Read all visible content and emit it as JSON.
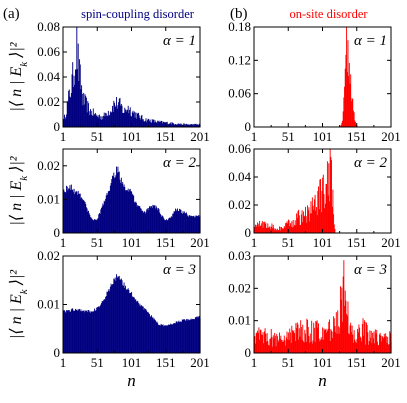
{
  "chart_data": [
    {
      "id": "a1",
      "type": "bar",
      "panel_label": "(a)",
      "column_title": "spin-coupling disorder",
      "annotation": "α = 1",
      "color": "#000080",
      "ylabel": "|⟨ n | E_k ⟩|²",
      "xlabel": "",
      "xlim": [
        1,
        201
      ],
      "ylim": [
        0,
        0.08
      ],
      "xticks": [
        1,
        51,
        101,
        151,
        201
      ],
      "xticklabels": [
        "1",
        "51",
        "101",
        "151",
        "201"
      ],
      "yticks": [
        0,
        0.02,
        0.04,
        0.06,
        0.08
      ],
      "yticklabels": [
        "0",
        "0.02",
        "0.04",
        "0.06",
        "0.08"
      ],
      "profile": [
        [
          1,
          0.003
        ],
        [
          5,
          0.012
        ],
        [
          10,
          0.025
        ],
        [
          14,
          0.035
        ],
        [
          18,
          0.05
        ],
        [
          21,
          0.065
        ],
        [
          24,
          0.045
        ],
        [
          27,
          0.035
        ],
        [
          30,
          0.022
        ],
        [
          35,
          0.018
        ],
        [
          40,
          0.013
        ],
        [
          50,
          0.009
        ],
        [
          60,
          0.008
        ],
        [
          65,
          0.012
        ],
        [
          70,
          0.013
        ],
        [
          75,
          0.018
        ],
        [
          80,
          0.019
        ],
        [
          85,
          0.017
        ],
        [
          90,
          0.012
        ],
        [
          95,
          0.016
        ],
        [
          100,
          0.013
        ],
        [
          110,
          0.009
        ],
        [
          120,
          0.006
        ],
        [
          140,
          0.004
        ],
        [
          160,
          0.003
        ],
        [
          180,
          0.002
        ],
        [
          201,
          0.002
        ]
      ],
      "noise": 0.35
    },
    {
      "id": "b1",
      "type": "bar",
      "panel_label": "(b)",
      "column_title": "on-site disorder",
      "annotation": "α = 1",
      "color": "#ff0000",
      "ylabel": "",
      "xlabel": "",
      "xlim": [
        1,
        201
      ],
      "ylim": [
        0,
        0.18
      ],
      "xticks": [
        1,
        51,
        101,
        151,
        201
      ],
      "xticklabels": [
        "1",
        "51",
        "101",
        "151",
        "201"
      ],
      "yticks": [
        0,
        0.06,
        0.12,
        0.18
      ],
      "yticklabels": [
        "0",
        "0.06",
        "0.12",
        "0.18"
      ],
      "profile": [
        [
          1,
          0
        ],
        [
          126,
          0
        ],
        [
          128,
          0.004
        ],
        [
          130,
          0.015
        ],
        [
          132,
          0.04
        ],
        [
          134,
          0.085
        ],
        [
          136,
          0.16
        ],
        [
          138,
          0.14
        ],
        [
          140,
          0.11
        ],
        [
          142,
          0.085
        ],
        [
          144,
          0.05
        ],
        [
          146,
          0.03
        ],
        [
          148,
          0.015
        ],
        [
          150,
          0.005
        ],
        [
          152,
          0.001
        ],
        [
          154,
          0
        ],
        [
          201,
          0
        ]
      ],
      "noise": 0.35
    },
    {
      "id": "a2",
      "type": "bar",
      "panel_label": "",
      "column_title": "",
      "annotation": "α = 2",
      "color": "#000080",
      "ylabel": "|⟨ n | E_k ⟩|²",
      "xlabel": "",
      "xlim": [
        1,
        201
      ],
      "ylim": [
        0,
        0.025
      ],
      "xticks": [
        1,
        51,
        101,
        151,
        201
      ],
      "xticklabels": [
        "1",
        "51",
        "101",
        "151",
        "201"
      ],
      "yticks": [
        0,
        0.01,
        0.02
      ],
      "yticklabels": [
        "0",
        "0.01",
        "0.02"
      ],
      "profile": [
        [
          1,
          0.012
        ],
        [
          5,
          0.013
        ],
        [
          10,
          0.014
        ],
        [
          15,
          0.013
        ],
        [
          20,
          0.012
        ],
        [
          25,
          0.012
        ],
        [
          30,
          0.01
        ],
        [
          35,
          0.008
        ],
        [
          40,
          0.005
        ],
        [
          45,
          0.004
        ],
        [
          50,
          0.004
        ],
        [
          55,
          0.006
        ],
        [
          60,
          0.009
        ],
        [
          65,
          0.011
        ],
        [
          70,
          0.014
        ],
        [
          75,
          0.017
        ],
        [
          80,
          0.019
        ],
        [
          85,
          0.016
        ],
        [
          90,
          0.014
        ],
        [
          95,
          0.013
        ],
        [
          100,
          0.012
        ],
        [
          105,
          0.01
        ],
        [
          110,
          0.008
        ],
        [
          115,
          0.007
        ],
        [
          120,
          0.006
        ],
        [
          125,
          0.007
        ],
        [
          130,
          0.008
        ],
        [
          135,
          0.008
        ],
        [
          140,
          0.007
        ],
        [
          145,
          0.005
        ],
        [
          150,
          0.004
        ],
        [
          155,
          0.004
        ],
        [
          160,
          0.005
        ],
        [
          165,
          0.007
        ],
        [
          170,
          0.007
        ],
        [
          175,
          0.006
        ],
        [
          180,
          0.006
        ],
        [
          185,
          0.005
        ],
        [
          190,
          0.005
        ],
        [
          195,
          0.005
        ],
        [
          201,
          0.005
        ]
      ],
      "noise": 0.08
    },
    {
      "id": "b2",
      "type": "bar",
      "panel_label": "",
      "column_title": "",
      "annotation": "α = 2",
      "color": "#ff0000",
      "ylabel": "",
      "xlabel": "",
      "xlim": [
        1,
        201
      ],
      "ylim": [
        0,
        0.06
      ],
      "xticks": [
        1,
        51,
        101,
        151,
        201
      ],
      "xticklabels": [
        "1",
        "51",
        "101",
        "151",
        "201"
      ],
      "yticks": [
        0,
        0.02,
        0.04,
        0.06
      ],
      "yticklabels": [
        "0",
        "0.02",
        "0.04",
        "0.06"
      ],
      "profile": [
        [
          1,
          0.005
        ],
        [
          10,
          0.006
        ],
        [
          20,
          0.007
        ],
        [
          30,
          0.004
        ],
        [
          40,
          0.003
        ],
        [
          50,
          0.006
        ],
        [
          60,
          0.009
        ],
        [
          70,
          0.012
        ],
        [
          80,
          0.014
        ],
        [
          90,
          0.02
        ],
        [
          100,
          0.028
        ],
        [
          105,
          0.03
        ],
        [
          110,
          0.038
        ],
        [
          112,
          0.044
        ],
        [
          114,
          0.036
        ],
        [
          116,
          0.02
        ],
        [
          118,
          0.004
        ],
        [
          120,
          0
        ],
        [
          201,
          0
        ]
      ],
      "noise": 0.55
    },
    {
      "id": "a3",
      "type": "bar",
      "panel_label": "",
      "column_title": "",
      "annotation": "α = 3",
      "color": "#000080",
      "ylabel": "|⟨ n | E_k ⟩|²",
      "xlabel": "n",
      "xlim": [
        1,
        201
      ],
      "ylim": [
        0,
        0.02
      ],
      "xticks": [
        1,
        51,
        101,
        151,
        201
      ],
      "xticklabels": [
        "1",
        "51",
        "101",
        "151",
        "201"
      ],
      "yticks": [
        0,
        0.01,
        0.02
      ],
      "yticklabels": [
        "0",
        "0.01",
        "0.02"
      ],
      "profile": [
        [
          1,
          0.0085
        ],
        [
          10,
          0.0088
        ],
        [
          20,
          0.009
        ],
        [
          30,
          0.0088
        ],
        [
          40,
          0.0085
        ],
        [
          50,
          0.009
        ],
        [
          60,
          0.011
        ],
        [
          70,
          0.0135
        ],
        [
          80,
          0.016
        ],
        [
          85,
          0.015
        ],
        [
          90,
          0.014
        ],
        [
          100,
          0.0125
        ],
        [
          110,
          0.0105
        ],
        [
          120,
          0.009
        ],
        [
          130,
          0.0075
        ],
        [
          140,
          0.006
        ],
        [
          150,
          0.0055
        ],
        [
          160,
          0.006
        ],
        [
          170,
          0.0065
        ],
        [
          180,
          0.0068
        ],
        [
          190,
          0.007
        ],
        [
          201,
          0.0075
        ]
      ],
      "noise": 0.04
    },
    {
      "id": "b3",
      "type": "bar",
      "panel_label": "",
      "column_title": "",
      "annotation": "α = 3",
      "color": "#ff0000",
      "ylabel": "",
      "xlabel": "n",
      "xlim": [
        1,
        201
      ],
      "ylim": [
        0,
        0.03
      ],
      "xticks": [
        1,
        51,
        101,
        151,
        201
      ],
      "xticklabels": [
        "1",
        "51",
        "101",
        "151",
        "201"
      ],
      "yticks": [
        0,
        0.01,
        0.02,
        0.03
      ],
      "yticklabels": [
        "0",
        "0.01",
        "0.02",
        "0.03"
      ],
      "profile": [
        [
          1,
          0.006
        ],
        [
          20,
          0.005
        ],
        [
          40,
          0.004
        ],
        [
          60,
          0.006
        ],
        [
          80,
          0.007
        ],
        [
          100,
          0.006
        ],
        [
          110,
          0.007
        ],
        [
          120,
          0.009
        ],
        [
          125,
          0.012
        ],
        [
          130,
          0.015
        ],
        [
          133,
          0.02
        ],
        [
          136,
          0.012
        ],
        [
          140,
          0.008
        ],
        [
          150,
          0.006
        ],
        [
          160,
          0.007
        ],
        [
          175,
          0.005
        ],
        [
          190,
          0.004
        ],
        [
          201,
          0.006
        ]
      ],
      "noise": 0.6
    }
  ]
}
